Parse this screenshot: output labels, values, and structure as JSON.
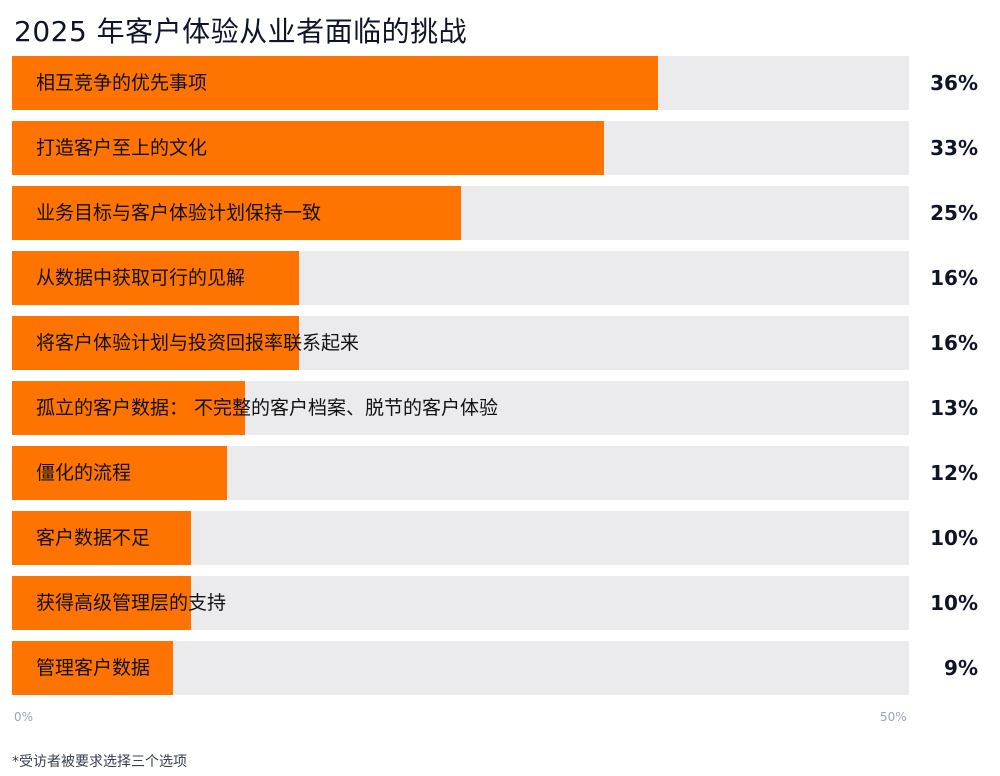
{
  "title": "2025 年客户体验从业者面临的挑战",
  "chart_data": {
    "type": "bar",
    "orientation": "horizontal",
    "categories": [
      "相互竞争的优先事项",
      "打造客户至上的文化",
      "业务目标与客户体验计划保持一致",
      "从数据中获取可行的见解",
      "将客户体验计划与投资回报率联系起来",
      "孤立的客户数据： 不完整的客户档案、脱节的客户体验",
      "僵化的流程",
      "客户数据不足",
      "获得高级管理层的支持",
      "管理客户数据"
    ],
    "values": [
      36,
      33,
      25,
      16,
      16,
      13,
      12,
      10,
      10,
      9
    ],
    "value_labels": [
      "36%",
      "33%",
      "25%",
      "16%",
      "16%",
      "13%",
      "12%",
      "10%",
      "10%",
      "9%"
    ],
    "xlim": [
      0,
      50
    ],
    "tick_labels": [
      "0%",
      "50%"
    ],
    "grid": false,
    "legend": "none"
  },
  "colors": {
    "bar": "#ff7300",
    "track": "#ebebed",
    "text": "#0f1426"
  },
  "footnote": "*受访者被要求选择三个选项"
}
